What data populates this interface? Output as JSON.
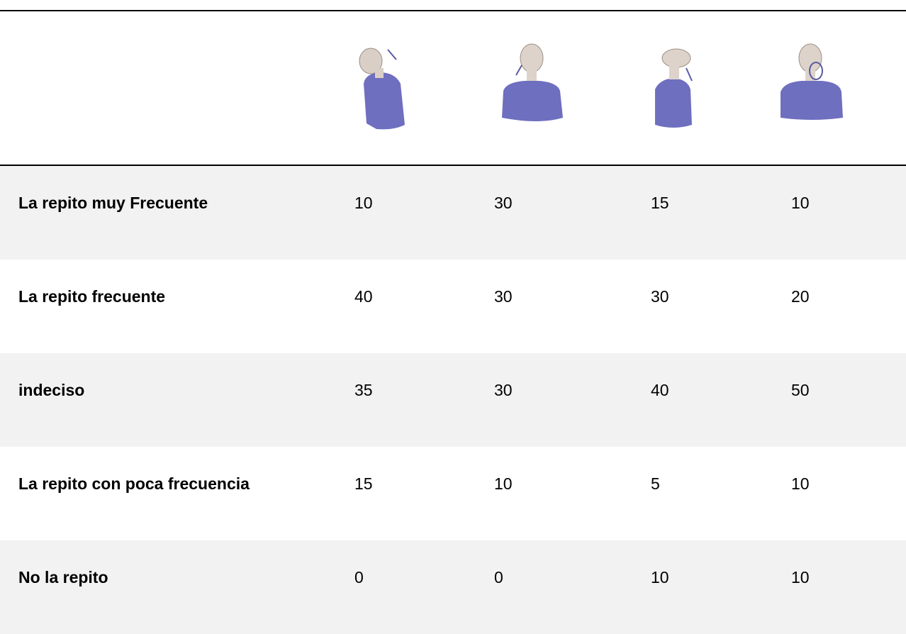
{
  "table": {
    "rows": [
      [
        "La repito muy Frecuente",
        "10",
        "30",
        "15",
        "10"
      ],
      [
        "La repito frecuente",
        "40",
        "30",
        "30",
        "20"
      ],
      [
        "indeciso",
        "35",
        "30",
        "40",
        "50"
      ],
      [
        "La repito con poca frecuencia",
        "15",
        "10",
        "5",
        "10"
      ],
      [
        "No la repito",
        "0",
        "0",
        "10",
        "10"
      ]
    ]
  }
}
